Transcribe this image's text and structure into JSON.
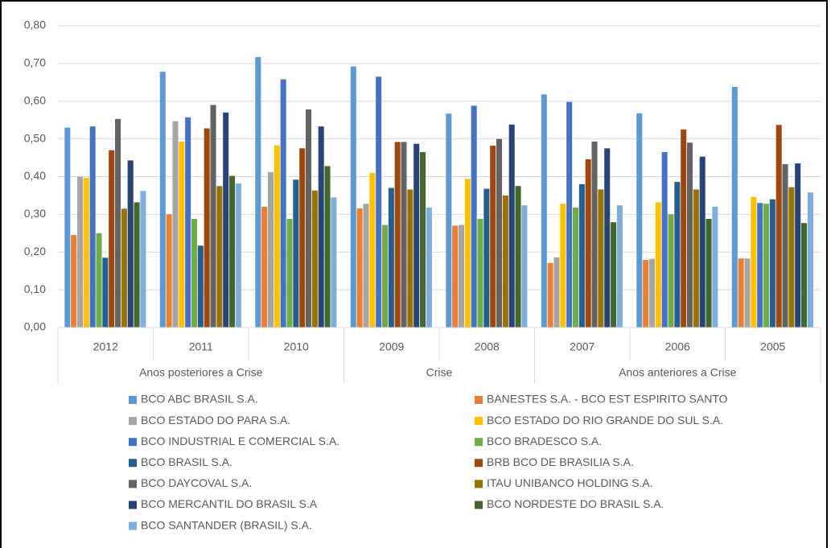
{
  "chart_data": {
    "type": "bar",
    "groups": [
      {
        "name": "Anos posteriores a Crise",
        "categories": [
          "2012",
          "2011",
          "2010"
        ]
      },
      {
        "name": "Crise",
        "categories": [
          "2009",
          "2008"
        ]
      },
      {
        "name": "Anos anteriores a Crise",
        "categories": [
          "2007",
          "2006",
          "2005"
        ]
      }
    ],
    "ylim": [
      0,
      0.8
    ],
    "yticks": [
      {
        "value": 0,
        "label": "0,00"
      },
      {
        "value": 0.1,
        "label": "0,10"
      },
      {
        "value": 0.2,
        "label": "0,20"
      },
      {
        "value": 0.3,
        "label": "0,30"
      },
      {
        "value": 0.4,
        "label": "0,40"
      },
      {
        "value": 0.5,
        "label": "0,50"
      },
      {
        "value": 0.6,
        "label": "0,60"
      },
      {
        "value": 0.7,
        "label": "0,70"
      },
      {
        "value": 0.8,
        "label": "0,80"
      }
    ],
    "grid": true,
    "legend": "bottom",
    "series": [
      {
        "name": "BCO ABC BRASIL S.A.",
        "color": "#5b9bd5",
        "values": [
          0.53,
          0.678,
          0.717,
          0.692,
          0.567,
          0.618,
          0.568,
          0.638
        ]
      },
      {
        "name": "BANESTES S.A. - BCO EST ESPIRITO SANTO",
        "color": "#ed7d31",
        "values": [
          0.245,
          0.3,
          0.32,
          0.316,
          0.27,
          0.171,
          0.179,
          0.183
        ]
      },
      {
        "name": "BCO ESTADO DO PARA S.A.",
        "color": "#a5a5a5",
        "values": [
          0.4,
          0.547,
          0.412,
          0.328,
          0.272,
          0.186,
          0.182,
          0.183
        ]
      },
      {
        "name": "BCO ESTADO DO RIO GRANDE DO SUL S.A.",
        "color": "#ffc000",
        "values": [
          0.397,
          0.493,
          0.483,
          0.41,
          0.394,
          0.328,
          0.332,
          0.346
        ]
      },
      {
        "name": "BCO INDUSTRIAL E COMERCIAL S.A.",
        "color": "#4472c4",
        "values": [
          0.533,
          0.557,
          0.658,
          0.665,
          0.588,
          0.598,
          0.465,
          0.33
        ]
      },
      {
        "name": "BCO BRADESCO S.A.",
        "color": "#70ad47",
        "values": [
          0.25,
          0.288,
          0.288,
          0.272,
          0.288,
          0.318,
          0.3,
          0.328
        ]
      },
      {
        "name": "BCO BRASIL S.A.",
        "color": "#255e91",
        "values": [
          0.185,
          0.217,
          0.392,
          0.37,
          0.368,
          0.38,
          0.386,
          0.34
        ]
      },
      {
        "name": "BRB BCO DE BRASILIA S.A.",
        "color": "#9e480e",
        "values": [
          0.47,
          0.528,
          0.475,
          0.492,
          0.482,
          0.446,
          0.525,
          0.537
        ]
      },
      {
        "name": "BCO DAYCOVAL S.A.",
        "color": "#636363",
        "values": [
          0.553,
          0.59,
          0.578,
          0.492,
          0.5,
          0.493,
          0.49,
          0.433
        ]
      },
      {
        "name": "ITAU UNIBANCO HOLDING S.A.",
        "color": "#997300",
        "values": [
          0.315,
          0.375,
          0.363,
          0.366,
          0.35,
          0.366,
          0.366,
          0.372
        ]
      },
      {
        "name": "BCO MERCANTIL DO BRASIL S.A",
        "color": "#264478",
        "values": [
          0.443,
          0.57,
          0.533,
          0.487,
          0.538,
          0.475,
          0.453,
          0.435
        ]
      },
      {
        "name": "BCO NORDESTE DO BRASIL S.A.",
        "color": "#43682b",
        "values": [
          0.332,
          0.402,
          0.428,
          0.465,
          0.375,
          0.279,
          0.288,
          0.277
        ]
      },
      {
        "name": "BCO SANTANDER (BRASIL) S.A.",
        "color": "#7cafdd",
        "values": [
          0.362,
          0.382,
          0.345,
          0.318,
          0.324,
          0.324,
          0.32,
          0.358
        ]
      }
    ]
  }
}
